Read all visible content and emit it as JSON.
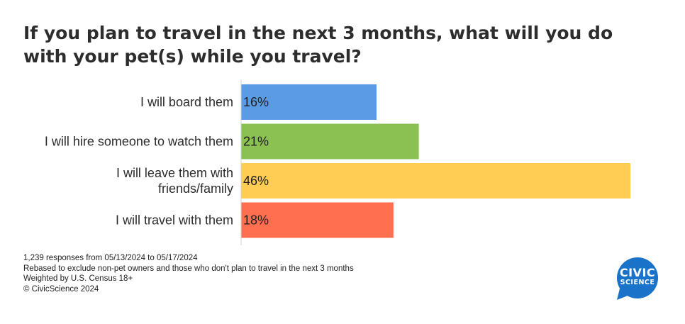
{
  "chart_data": {
    "type": "bar",
    "orientation": "horizontal",
    "title": "If you plan to travel in the next 3 months, what will you do with your pet(s) while you travel?",
    "categories": [
      [
        "I will board them"
      ],
      [
        "I will hire someone to watch them"
      ],
      [
        "I will leave them with",
        "friends/family"
      ],
      [
        "I will travel with them"
      ]
    ],
    "values": [
      16,
      21,
      46,
      18
    ],
    "value_labels": [
      "16%",
      "21%",
      "46%",
      "18%"
    ],
    "colors": [
      "#5b9be6",
      "#8bc053",
      "#ffcc54",
      "#ff6f50"
    ],
    "xlim": [
      0,
      46
    ],
    "grid": false,
    "legend": "none"
  },
  "footnotes": [
    "1,239 responses from 05/13/2024 to 05/17/2024",
    "Rebased to exclude non-pet owners and those who don't plan to travel in the next 3 months",
    "Weighted by U.S. Census 18+",
    "© CivicScience 2024"
  ],
  "logo": {
    "icon": "speech-bubble-logo-icon",
    "line1": "CIVIC",
    "line2": "SCIENCE",
    "color": "#1a73c8"
  }
}
